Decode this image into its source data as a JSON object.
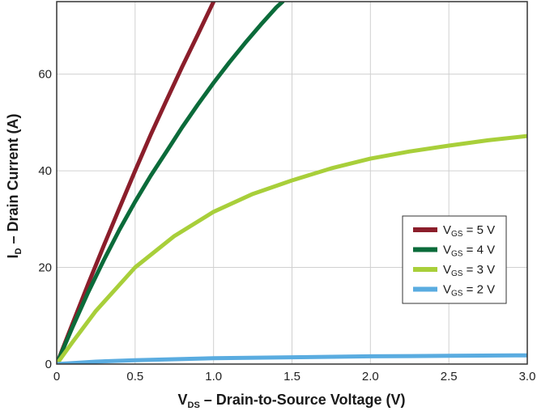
{
  "chart_data": {
    "type": "line",
    "xlabel": {
      "main": "V",
      "sub": "DS",
      "rest": " – Drain-to-Source Voltage (V)"
    },
    "ylabel": {
      "main": "I",
      "sub": "D",
      "rest": " – Drain Current (A)"
    },
    "xlim": [
      0,
      3.0
    ],
    "ylim": [
      0,
      75
    ],
    "xticks": [
      "0",
      "0.5",
      "1.0",
      "1.5",
      "2.0",
      "2.5",
      "3.0"
    ],
    "xtick_values": [
      0,
      0.5,
      1.0,
      1.5,
      2.0,
      2.5,
      3.0
    ],
    "yticks": [
      "0",
      "20",
      "40",
      "60"
    ],
    "ytick_values": [
      0,
      20,
      40,
      60
    ],
    "grid": true,
    "legend_position": "right",
    "series": [
      {
        "name": "VGS = 5 V",
        "legend": {
          "main": "V",
          "sub": "GS",
          "rest": " = 5 V"
        },
        "color": "#8b1e2b",
        "x": [
          0,
          0.1,
          0.2,
          0.3,
          0.4,
          0.5,
          0.6,
          0.7,
          0.8,
          0.9,
          1.0
        ],
        "y": [
          0,
          8.3,
          16.5,
          24.5,
          32.3,
          40.0,
          47.5,
          54.6,
          61.5,
          68.2,
          75.0
        ]
      },
      {
        "name": "VGS = 4 V",
        "legend": {
          "main": "V",
          "sub": "GS",
          "rest": " = 4 V"
        },
        "color": "#0b6b3a",
        "x": [
          0,
          0.1,
          0.2,
          0.3,
          0.4,
          0.5,
          0.6,
          0.7,
          0.8,
          0.9,
          1.0,
          1.1,
          1.2,
          1.3,
          1.4,
          1.44
        ],
        "y": [
          0,
          7.6,
          14.8,
          21.5,
          27.8,
          33.6,
          39.0,
          44.0,
          49.0,
          53.7,
          58.2,
          62.4,
          66.4,
          70.2,
          73.8,
          75.0
        ]
      },
      {
        "name": "VGS = 3 V",
        "legend": {
          "main": "V",
          "sub": "GS",
          "rest": " = 3 V"
        },
        "color": "#a8cf3a",
        "x": [
          0,
          0.1,
          0.25,
          0.5,
          0.75,
          1.0,
          1.25,
          1.5,
          1.75,
          2.0,
          2.25,
          2.5,
          2.75,
          3.0
        ],
        "y": [
          0,
          4.5,
          11.0,
          20.0,
          26.5,
          31.5,
          35.2,
          38.0,
          40.5,
          42.5,
          44.0,
          45.2,
          46.3,
          47.2
        ]
      },
      {
        "name": "VGS = 2 V",
        "legend": {
          "main": "V",
          "sub": "GS",
          "rest": " = 2 V"
        },
        "color": "#5aace0",
        "x": [
          0,
          0.25,
          0.5,
          0.75,
          1.0,
          1.5,
          2.0,
          2.5,
          3.0
        ],
        "y": [
          0,
          0.5,
          0.8,
          1.0,
          1.2,
          1.4,
          1.6,
          1.7,
          1.8
        ]
      }
    ]
  }
}
